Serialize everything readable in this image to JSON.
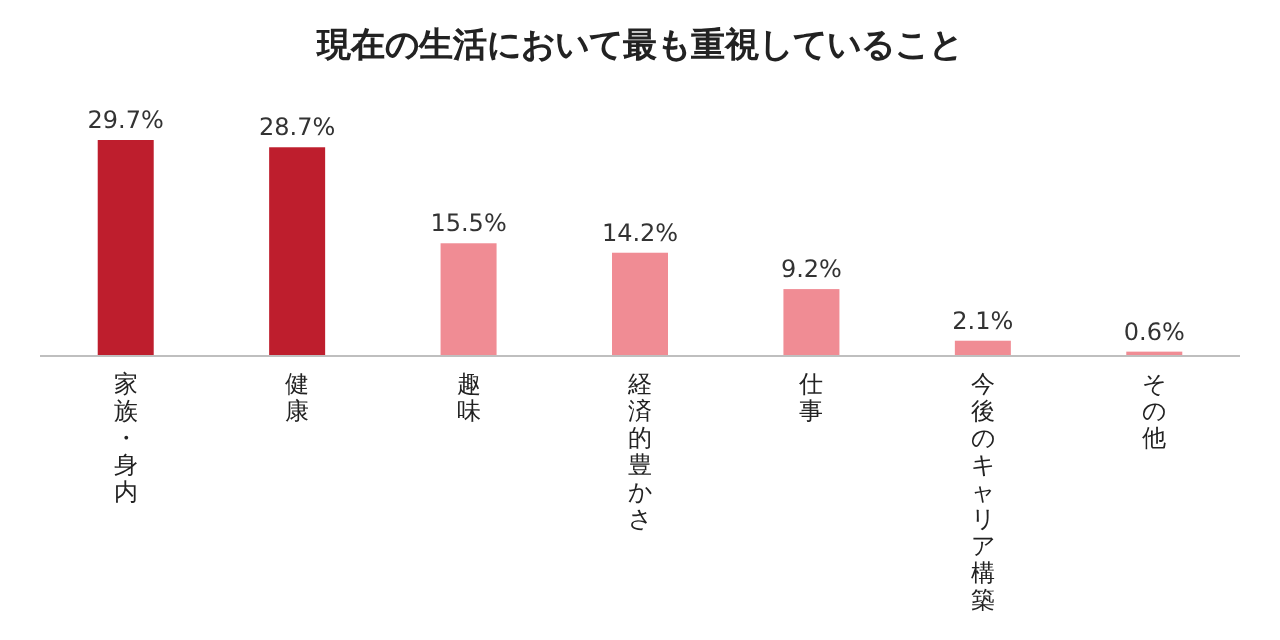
{
  "chart_data": {
    "type": "bar",
    "title": "現在の生活において最も重視していること",
    "categories": [
      "家族・身内",
      "健康",
      "趣味",
      "経済的豊かさ",
      "仕事",
      "今後のキャリア構築",
      "その他"
    ],
    "values": [
      29.7,
      28.7,
      15.5,
      14.2,
      9.2,
      2.1,
      0.6
    ],
    "value_labels": [
      "29.7%",
      "28.7%",
      "15.5%",
      "14.2%",
      "9.2%",
      "2.1%",
      "0.6%"
    ],
    "colors": [
      "#be1e2d",
      "#be1e2d",
      "#f08c94",
      "#f08c94",
      "#f08c94",
      "#f08c94",
      "#f08c94"
    ],
    "relative": false
  }
}
